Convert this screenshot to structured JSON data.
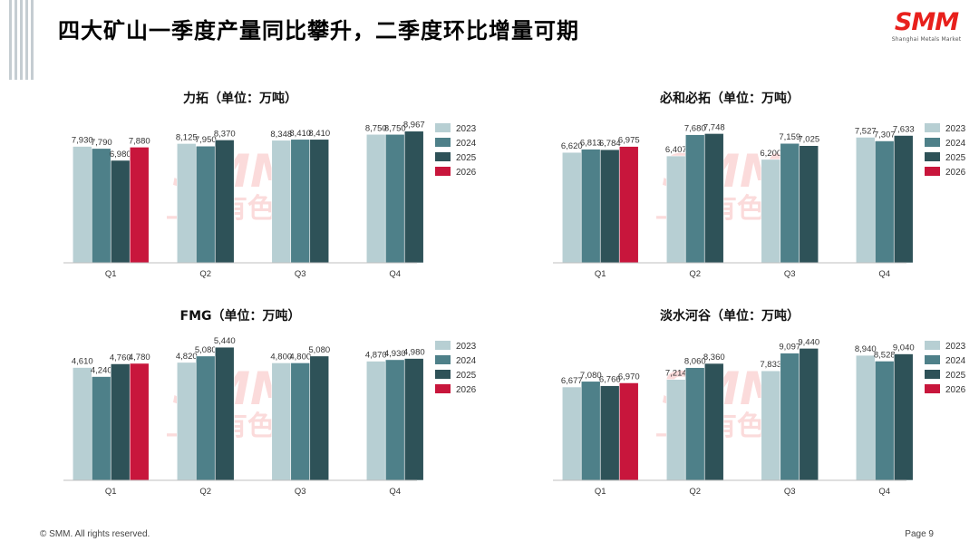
{
  "header": {
    "title": "四大矿山一季度产量同比攀升，二季度环比增量可期",
    "logo_text": "SMM",
    "logo_sub": "Shanghai Metals Market"
  },
  "watermark": {
    "line1": "SMM",
    "line2": "上海有色网"
  },
  "footer": {
    "copyright": "© SMM. All rights reserved.",
    "page": "Page 9"
  },
  "colors": {
    "2023": "#b7cfd3",
    "2024": "#4e8089",
    "2025": "#2e5258",
    "2026": "#c8163c"
  },
  "chart_data": [
    {
      "type": "bar",
      "title": "力拓（单位：万吨）",
      "categories": [
        "Q1",
        "Q2",
        "Q3",
        "Q4"
      ],
      "series": [
        {
          "name": "2023",
          "values": [
            7930,
            8125,
            8348,
            8750
          ]
        },
        {
          "name": "2024",
          "values": [
            7790,
            7950,
            8410,
            8750
          ]
        },
        {
          "name": "2025",
          "values": [
            6980,
            8370,
            8410,
            8967
          ]
        },
        {
          "name": "2026",
          "values": [
            7880,
            null,
            null,
            null
          ]
        }
      ],
      "ylim": [
        0,
        10000
      ],
      "grid": false,
      "legend": "right"
    },
    {
      "type": "bar",
      "title": "必和必拓（单位：万吨）",
      "categories": [
        "Q1",
        "Q2",
        "Q3",
        "Q4"
      ],
      "series": [
        {
          "name": "2023",
          "values": [
            6620,
            6407,
            6200,
            7527
          ]
        },
        {
          "name": "2024",
          "values": [
            6813,
            7680,
            7159,
            7307
          ]
        },
        {
          "name": "2025",
          "values": [
            6784,
            7748,
            7025,
            7633
          ]
        },
        {
          "name": "2026",
          "values": [
            6975,
            null,
            null,
            null
          ]
        }
      ],
      "ylim": [
        0,
        8800
      ],
      "grid": false,
      "legend": "right"
    },
    {
      "type": "bar",
      "title": "FMG（单位：万吨）",
      "categories": [
        "Q1",
        "Q2",
        "Q3",
        "Q4"
      ],
      "series": [
        {
          "name": "2023",
          "values": [
            4610,
            4820,
            4800,
            4870
          ]
        },
        {
          "name": "2024",
          "values": [
            4240,
            5080,
            4800,
            4930
          ]
        },
        {
          "name": "2025",
          "values": [
            4760,
            5440,
            5080,
            4980
          ]
        },
        {
          "name": "2026",
          "values": [
            4780,
            null,
            null,
            null
          ]
        }
      ],
      "ylim": [
        0,
        6000
      ],
      "grid": false,
      "legend": "right"
    },
    {
      "type": "bar",
      "title": "淡水河谷（单位：万吨）",
      "categories": [
        "Q1",
        "Q2",
        "Q3",
        "Q4"
      ],
      "series": [
        {
          "name": "2023",
          "values": [
            6677,
            7214,
            7833,
            8940
          ]
        },
        {
          "name": "2024",
          "values": [
            7080,
            8060,
            9097,
            8528
          ]
        },
        {
          "name": "2025",
          "values": [
            6766,
            8360,
            9440,
            9040
          ]
        },
        {
          "name": "2026",
          "values": [
            6970,
            null,
            null,
            null
          ]
        }
      ],
      "ylim": [
        0,
        10500
      ],
      "grid": false,
      "legend": "right"
    }
  ]
}
